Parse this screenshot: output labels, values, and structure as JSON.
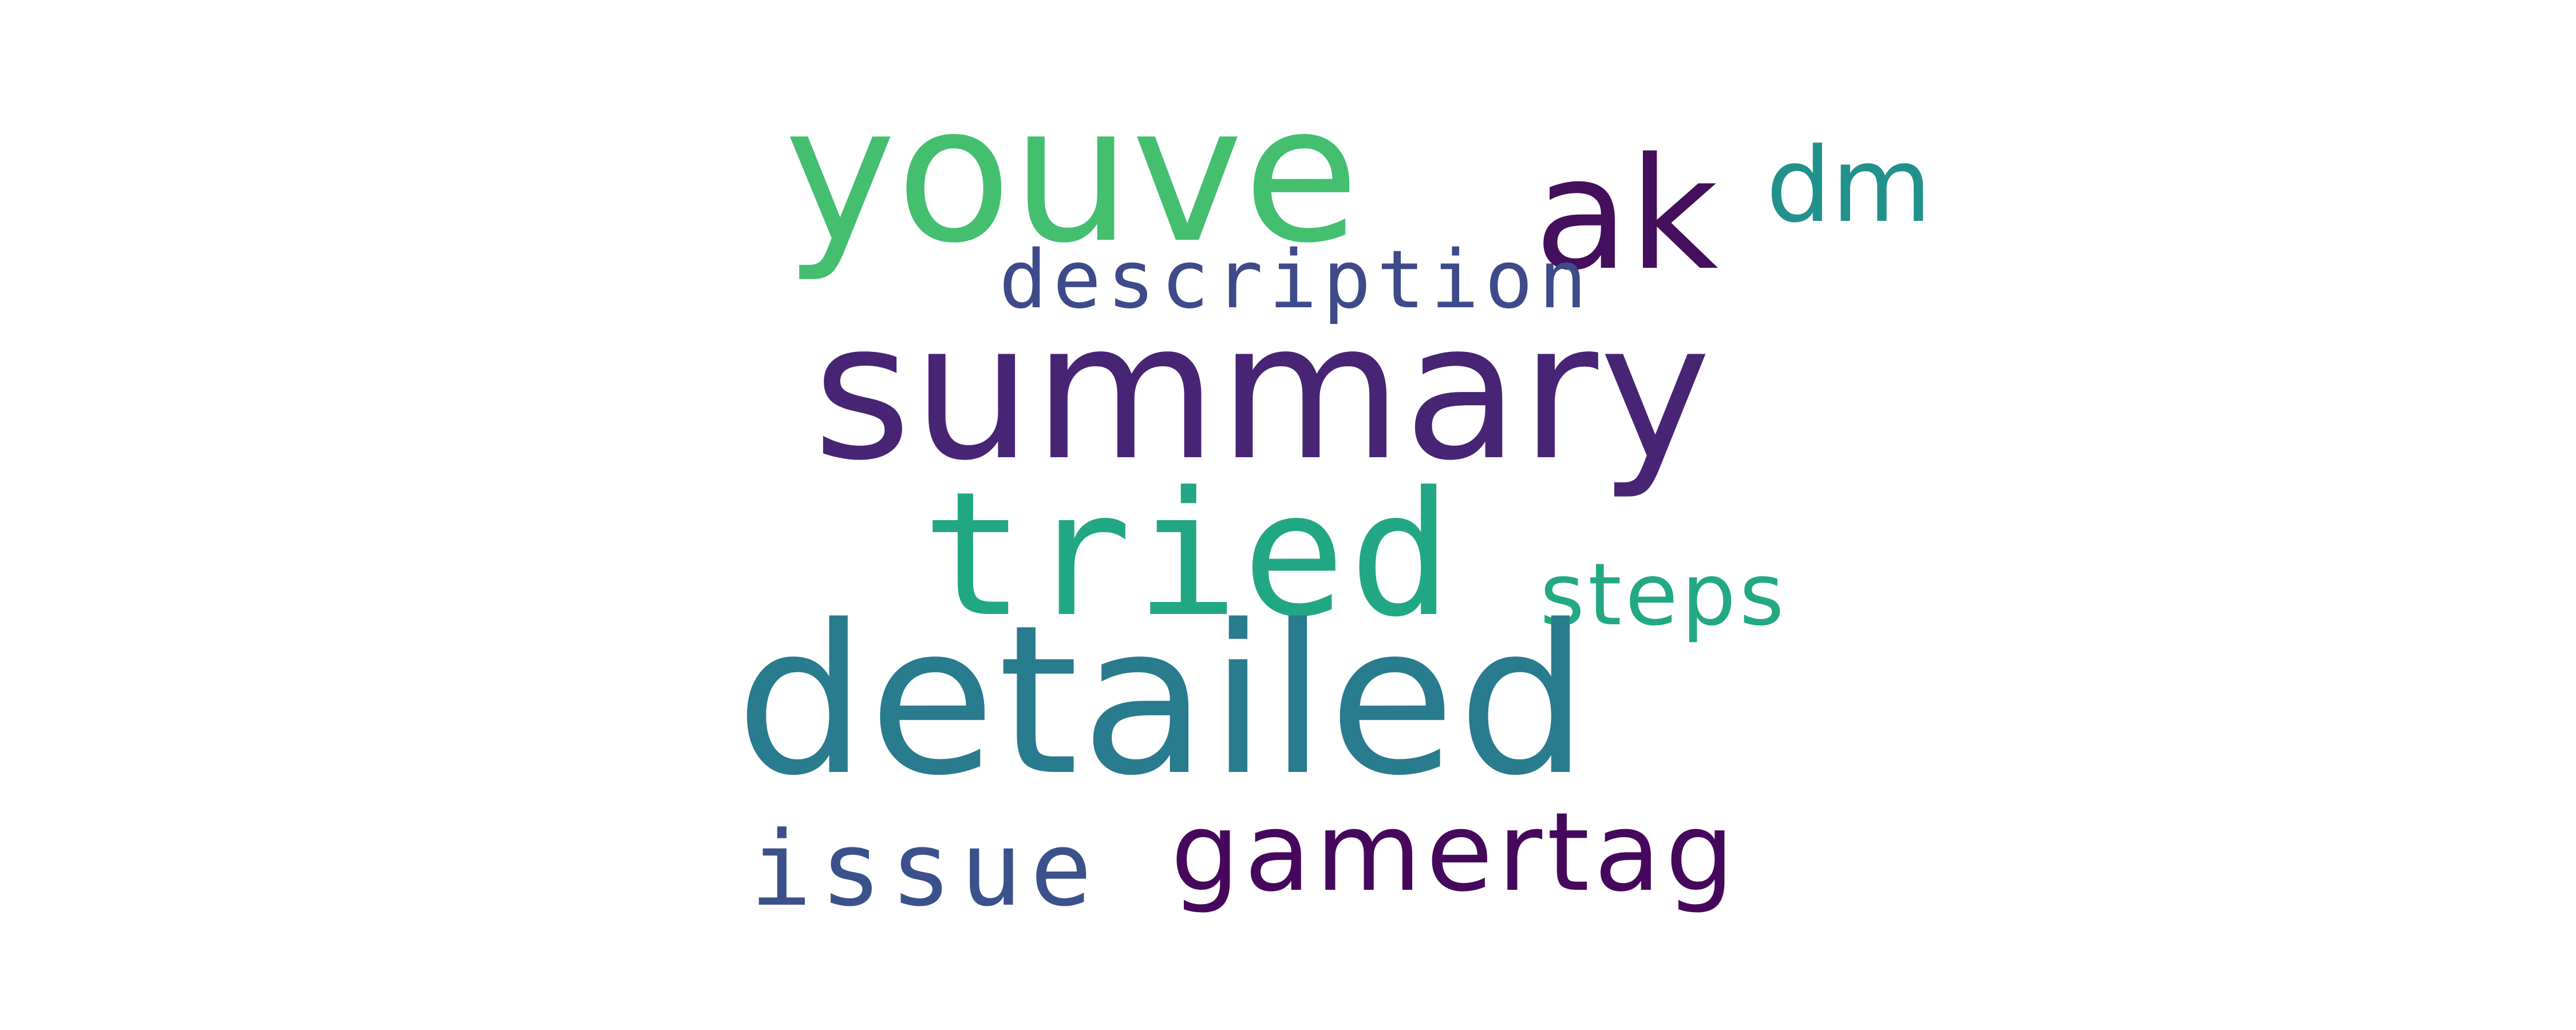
{
  "words": {
    "summary": {
      "text": "summary",
      "color": "#482475"
    },
    "detailed": {
      "text": "detailed",
      "color": "#297b8e"
    },
    "youve": {
      "text": "youve",
      "color": "#44bf70"
    },
    "tried": {
      "text": "tried",
      "color": "#22a785"
    },
    "ak": {
      "text": "ak",
      "color": "#440f5c"
    },
    "description": {
      "text": "description",
      "color": "#3e4a89"
    },
    "dm": {
      "text": "dm",
      "color": "#21918c"
    },
    "steps": {
      "text": "steps",
      "color": "#23a884"
    },
    "gamertag": {
      "text": "gamertag",
      "color": "#46085c"
    },
    "issue": {
      "text": "issue",
      "color": "#3b518b"
    }
  }
}
